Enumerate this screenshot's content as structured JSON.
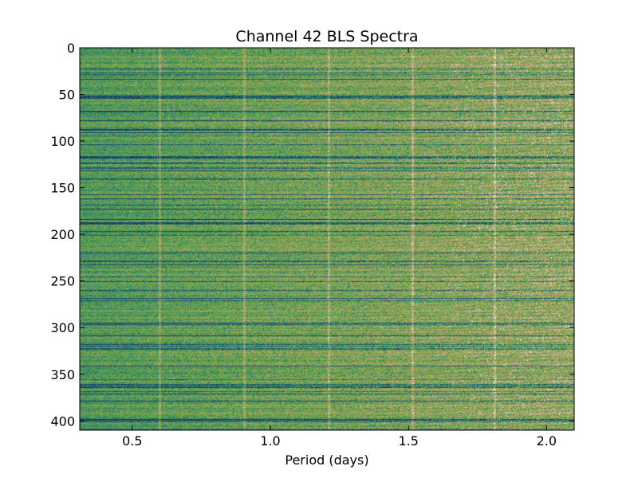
{
  "chart_data": {
    "type": "heatmap",
    "title": "Channel 42  BLS Spectra",
    "xlabel": "Period (days)",
    "ylabel": "",
    "xlim": [
      0.31,
      2.1
    ],
    "ylim": [
      410,
      0
    ],
    "x_ticks": [
      "0.5",
      "1.0",
      "1.5",
      "2.0"
    ],
    "y_ticks": [
      "0",
      "50",
      "100",
      "150",
      "200",
      "250",
      "300",
      "350",
      "400"
    ],
    "n_rows": 410,
    "vertical_features_period": [
      0.6,
      0.905,
      1.21,
      1.515,
      1.81
    ],
    "strong_dark_rows": [
      33,
      51,
      67,
      77,
      90,
      131,
      172,
      183,
      219,
      232,
      268,
      294,
      308,
      322,
      340,
      378,
      398
    ],
    "colormap": [
      "#163c67",
      "#1c6a78",
      "#2f8a6f",
      "#5e9e48",
      "#8aa84a",
      "#b3a46a",
      "#c9a887",
      "#e4d6d2",
      "#ffffff"
    ],
    "grid": false,
    "legend": "none"
  }
}
